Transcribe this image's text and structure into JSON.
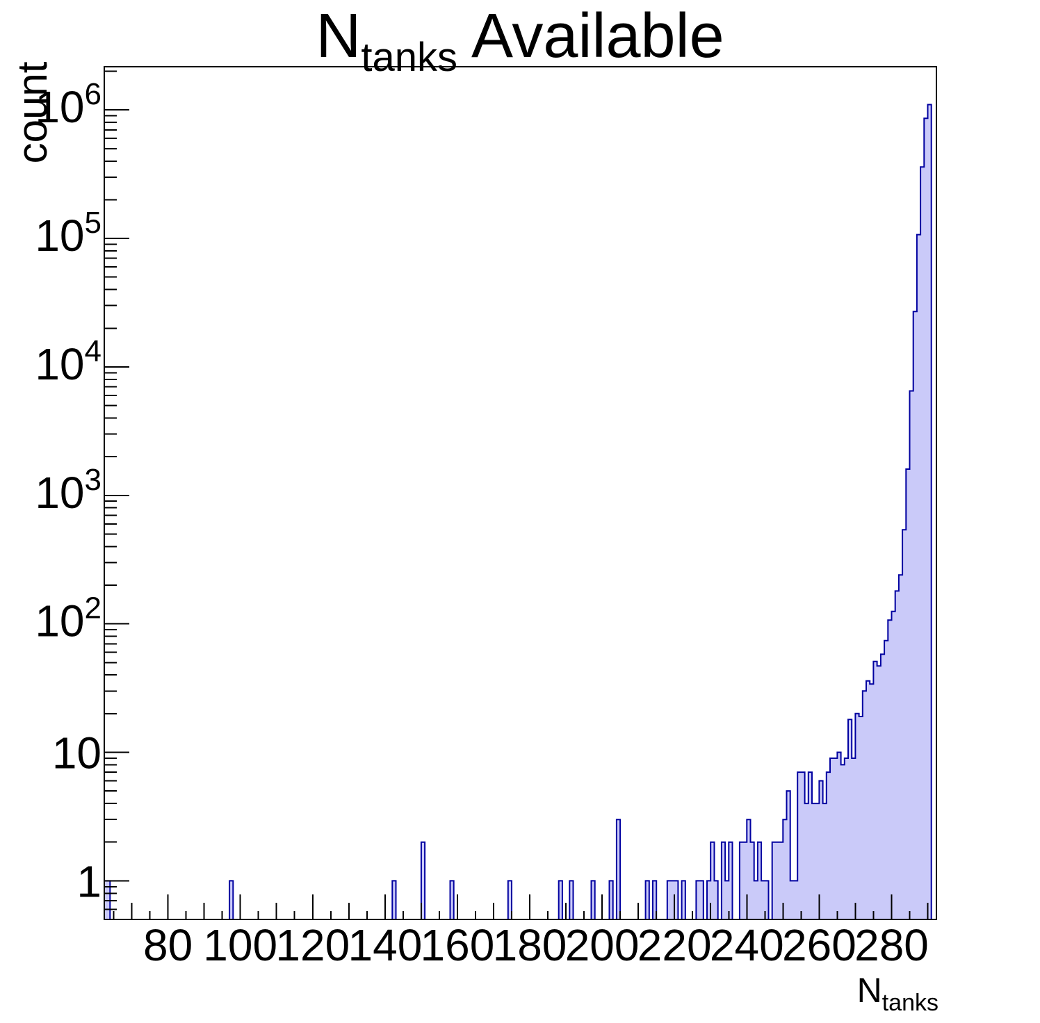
{
  "chart_data": {
    "type": "histogram",
    "title": {
      "base": "N",
      "subscript": "tanks",
      "rest": " Available"
    },
    "x_axis": {
      "title_base": "N",
      "title_subscript": "tanks",
      "min": 62.4,
      "max": 292.4,
      "major_step": 20,
      "medium_step": 10,
      "minor_step": 5,
      "labels": [
        {
          "v": 80,
          "text": "80"
        },
        {
          "v": 100,
          "text": "100"
        },
        {
          "v": 120,
          "text": "120"
        },
        {
          "v": 140,
          "text": "140"
        },
        {
          "v": 160,
          "text": "160"
        },
        {
          "v": 180,
          "text": "180"
        },
        {
          "v": 200,
          "text": "200"
        },
        {
          "v": 220,
          "text": "220"
        },
        {
          "v": 240,
          "text": "240"
        },
        {
          "v": 260,
          "text": "260"
        },
        {
          "v": 280,
          "text": "280"
        }
      ]
    },
    "y_axis": {
      "title": "count",
      "scale": "log",
      "min": 0.5,
      "max": 2170000,
      "labels": [
        {
          "v": 1,
          "text": "1"
        },
        {
          "v": 10,
          "text": "10"
        },
        {
          "v": 100,
          "base": "10",
          "exp": "2"
        },
        {
          "v": 1000,
          "base": "10",
          "exp": "3"
        },
        {
          "v": 10000,
          "base": "10",
          "exp": "4"
        },
        {
          "v": 100000,
          "base": "10",
          "exp": "5"
        },
        {
          "v": 1000000,
          "base": "10",
          "exp": "6"
        }
      ]
    },
    "bin_width": 1,
    "bins": [
      [
        62,
        1
      ],
      [
        63,
        1
      ],
      [
        97,
        1
      ],
      [
        142,
        1
      ],
      [
        150,
        2
      ],
      [
        158,
        1
      ],
      [
        174,
        1
      ],
      [
        188,
        1
      ],
      [
        191,
        1
      ],
      [
        197,
        1
      ],
      [
        202,
        1
      ],
      [
        204,
        3
      ],
      [
        212,
        1
      ],
      [
        214,
        1
      ],
      [
        218,
        1
      ],
      [
        219,
        1
      ],
      [
        220,
        1
      ],
      [
        222,
        1
      ],
      [
        226,
        1
      ],
      [
        227,
        1
      ],
      [
        229,
        1
      ],
      [
        230,
        2
      ],
      [
        231,
        1
      ],
      [
        233,
        2
      ],
      [
        234,
        1
      ],
      [
        235,
        2
      ],
      [
        238,
        2
      ],
      [
        239,
        2
      ],
      [
        240,
        3
      ],
      [
        241,
        2
      ],
      [
        242,
        1
      ],
      [
        243,
        2
      ],
      [
        244,
        1
      ],
      [
        245,
        1
      ],
      [
        247,
        2
      ],
      [
        248,
        2
      ],
      [
        249,
        2
      ],
      [
        250,
        3
      ],
      [
        251,
        5
      ],
      [
        252,
        1
      ],
      [
        253,
        1
      ],
      [
        254,
        7
      ],
      [
        255,
        7
      ],
      [
        256,
        4
      ],
      [
        257,
        7
      ],
      [
        258,
        4
      ],
      [
        259,
        4
      ],
      [
        260,
        6
      ],
      [
        261,
        4
      ],
      [
        262,
        7
      ],
      [
        263,
        9
      ],
      [
        264,
        9
      ],
      [
        265,
        10
      ],
      [
        266,
        8
      ],
      [
        267,
        9
      ],
      [
        268,
        18
      ],
      [
        269,
        9
      ],
      [
        270,
        20
      ],
      [
        271,
        19
      ],
      [
        272,
        30
      ],
      [
        273,
        36
      ],
      [
        274,
        34
      ],
      [
        275,
        51
      ],
      [
        276,
        47
      ],
      [
        277,
        58
      ],
      [
        278,
        74
      ],
      [
        279,
        107
      ],
      [
        280,
        125
      ],
      [
        281,
        180
      ],
      [
        282,
        240
      ],
      [
        283,
        540
      ],
      [
        284,
        1600
      ],
      [
        285,
        6500
      ],
      [
        286,
        27000
      ],
      [
        287,
        107000
      ],
      [
        288,
        360000
      ],
      [
        289,
        860000
      ],
      [
        290,
        1100000
      ]
    ],
    "colors": {
      "fill": "#cacaf9",
      "line": "#0000a0",
      "frame": "#000000",
      "text": "#000000",
      "background": "#ffffff"
    }
  }
}
